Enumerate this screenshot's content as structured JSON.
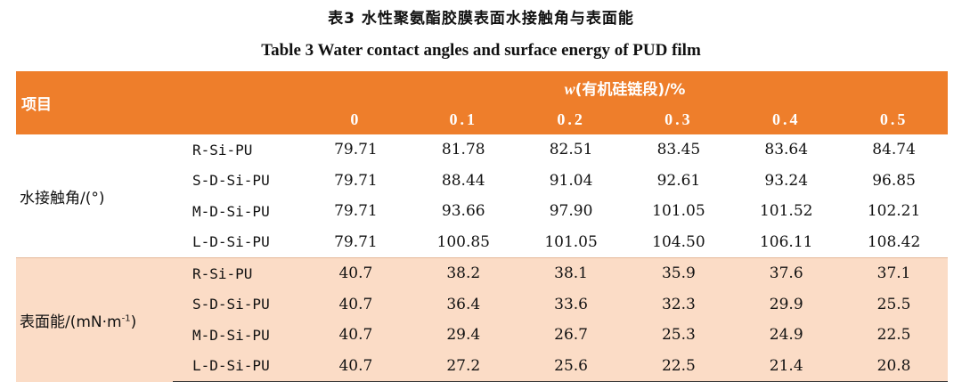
{
  "caption_cn": "表3 水性聚氨酯胶膜表面水接触角与表面能",
  "caption_en": "Table 3    Water contact angles and surface energy of PUD film",
  "header": {
    "item": "项目",
    "group_prefix": "w",
    "group_label": "(有机硅链段)/%",
    "columns": [
      "0",
      "0.1",
      "0.2",
      "0.3",
      "0.4",
      "0.5"
    ]
  },
  "accent_color": "#ee7e2b",
  "shade_color": "#fbdcc6",
  "groups": [
    {
      "name": "水接触角/(°)",
      "rows": [
        {
          "label": "R-Si-PU",
          "values": [
            "79.71",
            "81.78",
            "82.51",
            "83.45",
            "83.64",
            "84.74"
          ]
        },
        {
          "label": "S-D-Si-PU",
          "values": [
            "79.71",
            "88.44",
            "91.04",
            "92.61",
            "93.24",
            "96.85"
          ]
        },
        {
          "label": "M-D-Si-PU",
          "values": [
            "79.71",
            "93.66",
            "97.90",
            "101.05",
            "101.52",
            "102.21"
          ]
        },
        {
          "label": "L-D-Si-PU",
          "values": [
            "79.71",
            "100.85",
            "101.05",
            "104.50",
            "106.11",
            "108.42"
          ]
        }
      ]
    },
    {
      "name_main": "表面能/(mN·m",
      "name_sup": "-1",
      "name_end": ")",
      "rows": [
        {
          "label": "R-Si-PU",
          "values": [
            "40.7",
            "38.2",
            "38.1",
            "35.9",
            "37.6",
            "37.1"
          ]
        },
        {
          "label": "S-D-Si-PU",
          "values": [
            "40.7",
            "36.4",
            "33.6",
            "32.3",
            "29.9",
            "25.5"
          ]
        },
        {
          "label": "M-D-Si-PU",
          "values": [
            "40.7",
            "29.4",
            "26.7",
            "25.3",
            "24.9",
            "22.5"
          ]
        },
        {
          "label": "L-D-Si-PU",
          "values": [
            "40.7",
            "27.2",
            "25.6",
            "22.5",
            "21.4",
            "20.8"
          ]
        }
      ]
    }
  ]
}
